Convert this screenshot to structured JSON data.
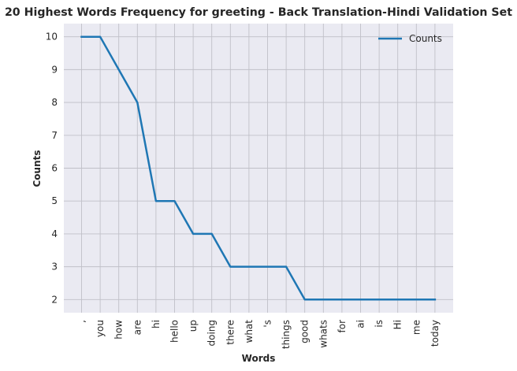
{
  "chart_data": {
    "type": "line",
    "title": "20 Highest Words Frequency for greeting - Back Translation-Hindi Validation Set",
    "xlabel": "Words",
    "ylabel": "Counts",
    "categories": [
      ",",
      "you",
      "how",
      "are",
      "hi",
      "hello",
      "up",
      "doing",
      "there",
      "what",
      "'s",
      "things",
      "good",
      "whats",
      "for",
      "ai",
      "is",
      "Hi",
      "me",
      "today"
    ],
    "series": [
      {
        "name": "Counts",
        "values": [
          10,
          10,
          9,
          8,
          5,
          5,
          4,
          4,
          3,
          3,
          3,
          3,
          2,
          2,
          2,
          2,
          2,
          2,
          2,
          2
        ],
        "color": "#1f77b4"
      }
    ],
    "yticks": [
      2,
      3,
      4,
      5,
      6,
      7,
      8,
      9,
      10
    ],
    "ylim": [
      1.6,
      10.4
    ],
    "grid": true,
    "legend": "top-right",
    "colors": {
      "background": "#eaeaf2",
      "grid": "#c0c0c8",
      "line": "#1f77b4"
    }
  }
}
